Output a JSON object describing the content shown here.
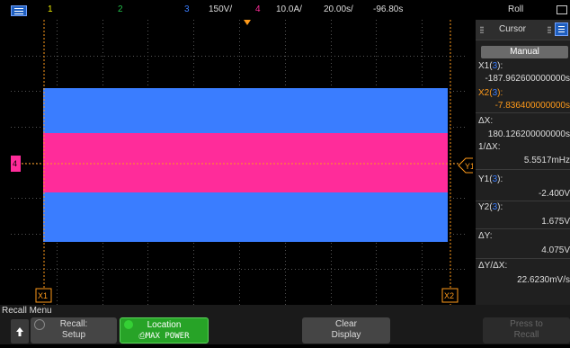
{
  "top_bar": {
    "ch1": "1",
    "ch2": "2",
    "ch3": "3",
    "ch3_scale": "150V/",
    "ch4": "4",
    "ch4_scale": "10.0A/",
    "timebase": "20.00s/",
    "delay": "-96.80s",
    "mode": "Roll"
  },
  "colors": {
    "ch1": "#f0f000",
    "ch2": "#22c04a",
    "ch3": "#3a7dff",
    "ch4": "#ff2c9a",
    "cursor": "#ff9a1a",
    "softkey_active": "#27a327"
  },
  "markers": {
    "x1": "X1",
    "x2": "X2",
    "y1": "Y1",
    "ch4_ground": "4"
  },
  "cursor_panel": {
    "title": "Cursor",
    "mode": "Manual",
    "x1_label": "X1(",
    "x1_src": "3",
    "x1_value": "-187.962600000000s",
    "x2_label": "X2(",
    "x2_src": "3",
    "x2_value": "-7.836400000000s",
    "dx_label": "ΔX:",
    "dx_value": "180.126200000000s",
    "inv_dx_label": "1/ΔX:",
    "inv_dx_value": "5.5517mHz",
    "y1_label": "Y1(",
    "y1_src": "3",
    "y1_value": "-2.400V",
    "y2_label": "Y2(",
    "y2_src": "3",
    "y2_value": "1.675V",
    "dy_label": "ΔY:",
    "dy_value": "4.075V",
    "dydx_label": "ΔY/ΔX:",
    "dydx_value": "22.6230mV/s"
  },
  "menu": {
    "title": "Recall Menu",
    "back_icon": "up-arrow-icon",
    "recall_l1": "Recall:",
    "recall_l2": "Setup",
    "location_l1": "Location",
    "location_l2": "⎙MAX POWER",
    "clear_l1": "Clear",
    "clear_l2": "Display",
    "press_l1": "Press to",
    "press_l2": "Recall"
  }
}
